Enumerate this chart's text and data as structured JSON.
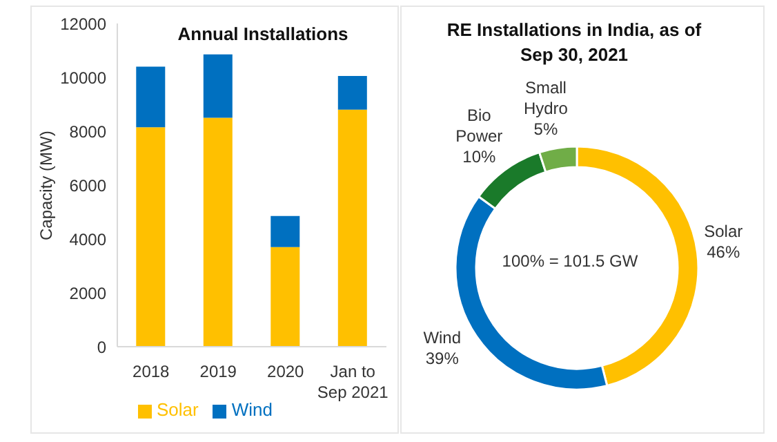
{
  "chart_data": [
    {
      "type": "bar",
      "title": "Annual Installations",
      "ylabel": "Capacity (MW)",
      "categories": [
        "2018",
        "2019",
        "2020",
        "Jan to Sep 2021"
      ],
      "stacked": true,
      "series": [
        {
          "name": "Solar",
          "color": "#ffc000",
          "values": [
            8150,
            8500,
            3700,
            8800
          ]
        },
        {
          "name": "Wind",
          "color": "#0070c0",
          "values": [
            2250,
            2350,
            1150,
            1250
          ]
        }
      ],
      "ylim": [
        0,
        12000
      ],
      "yticks": [
        0,
        2000,
        4000,
        6000,
        8000,
        10000,
        12000
      ],
      "legend": "bottom"
    },
    {
      "type": "donut",
      "title": "RE Installations in India, as of Sep 30, 2021",
      "categories": [
        "Solar",
        "Wind",
        "Bio Power",
        "Small Hydro"
      ],
      "values": [
        46,
        39,
        10,
        5
      ],
      "colors": [
        "#ffc000",
        "#0070c0",
        "#1a7a2a",
        "#70ad47"
      ],
      "value_labels": [
        "46%",
        "39%",
        "10%",
        "5%"
      ],
      "annotations": [
        "100% = 101.5 GW"
      ]
    }
  ]
}
